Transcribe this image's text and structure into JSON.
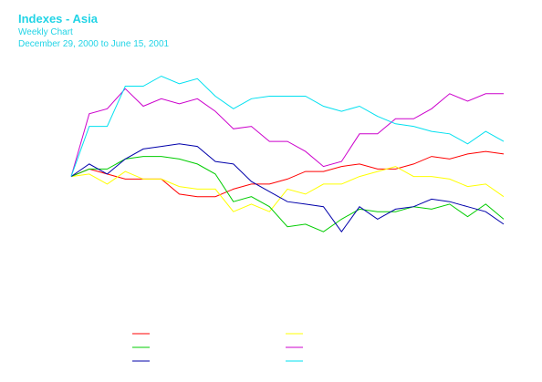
{
  "chart_data": {
    "type": "line",
    "title": "Indexes - Asia",
    "subtitle": "Weekly Chart",
    "date_range": "December 29, 2000 to June 15, 2001",
    "xlabel": "",
    "ylabel": "",
    "x": [
      0,
      1,
      2,
      3,
      4,
      5,
      6,
      7,
      8,
      9,
      10,
      11,
      12,
      13,
      14,
      15,
      16,
      17,
      18,
      19,
      20,
      21,
      22,
      23,
      24
    ],
    "ylim": [
      -0.35,
      0.42
    ],
    "grid": false,
    "legend": "bottom",
    "series": [
      {
        "color": "#ff0000",
        "values": [
          0,
          0.03,
          0.01,
          -0.01,
          -0.01,
          -0.01,
          -0.07,
          -0.08,
          -0.08,
          -0.05,
          -0.03,
          -0.03,
          -0.01,
          0.02,
          0.02,
          0.04,
          0.05,
          0.03,
          0.03,
          0.05,
          0.08,
          0.07,
          0.09,
          0.1,
          0.09
        ]
      },
      {
        "color": "#ffff00",
        "values": [
          0,
          0.01,
          -0.03,
          0.02,
          -0.01,
          -0.01,
          -0.04,
          -0.05,
          -0.05,
          -0.14,
          -0.11,
          -0.14,
          -0.05,
          -0.07,
          -0.03,
          -0.03,
          0.0,
          0.02,
          0.04,
          0.0,
          0.0,
          -0.01,
          -0.04,
          -0.03,
          -0.08
        ]
      },
      {
        "color": "#00cc00",
        "values": [
          0,
          0.03,
          0.03,
          0.07,
          0.08,
          0.08,
          0.07,
          0.05,
          0.01,
          -0.1,
          -0.08,
          -0.12,
          -0.2,
          -0.19,
          -0.22,
          -0.17,
          -0.13,
          -0.14,
          -0.14,
          -0.12,
          -0.13,
          -0.11,
          -0.16,
          -0.11,
          -0.17
        ]
      },
      {
        "color": "#cc00cc",
        "values": [
          0,
          0.25,
          0.27,
          0.35,
          0.28,
          0.31,
          0.29,
          0.31,
          0.26,
          0.19,
          0.2,
          0.14,
          0.14,
          0.1,
          0.04,
          0.06,
          0.17,
          0.17,
          0.23,
          0.23,
          0.27,
          0.33,
          0.3,
          0.33,
          0.33
        ]
      },
      {
        "color": "#0000aa",
        "values": [
          0,
          0.05,
          0.01,
          0.07,
          0.11,
          0.12,
          0.13,
          0.12,
          0.06,
          0.05,
          -0.02,
          -0.06,
          -0.1,
          -0.11,
          -0.12,
          -0.22,
          -0.12,
          -0.17,
          -0.13,
          -0.12,
          -0.09,
          -0.1,
          -0.12,
          -0.14,
          -0.19
        ]
      },
      {
        "color": "#00e0f0",
        "values": [
          0,
          0.2,
          0.2,
          0.36,
          0.36,
          0.4,
          0.37,
          0.39,
          0.32,
          0.27,
          0.31,
          0.32,
          0.32,
          0.32,
          0.28,
          0.26,
          0.28,
          0.24,
          0.21,
          0.2,
          0.18,
          0.17,
          0.13,
          0.18,
          0.14
        ]
      }
    ]
  }
}
